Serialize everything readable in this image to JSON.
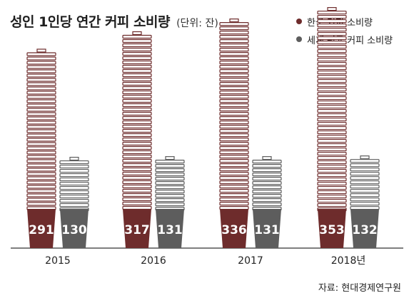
{
  "title": "성인 1인당 연간 커피 소비량",
  "unit_note": "(단위: 잔)",
  "source": "자료: 현대경제연구원",
  "colors": {
    "korea": "#6e2c2c",
    "world": "#5d5d5d",
    "axis": "#333333"
  },
  "chart_data": {
    "type": "bar",
    "title": "성인 1인당 연간 커피 소비량",
    "categories": [
      "2015",
      "2016",
      "2017",
      "2018년"
    ],
    "series": [
      {
        "name": "한국 커피 소비량",
        "values": [
          291,
          317,
          336,
          353
        ]
      },
      {
        "name": "세계 평균 커피 소비량",
        "values": [
          130,
          131,
          131,
          132
        ]
      }
    ],
    "ylim": [
      0,
      380
    ],
    "legend_position": "top-right",
    "grid": false
  }
}
